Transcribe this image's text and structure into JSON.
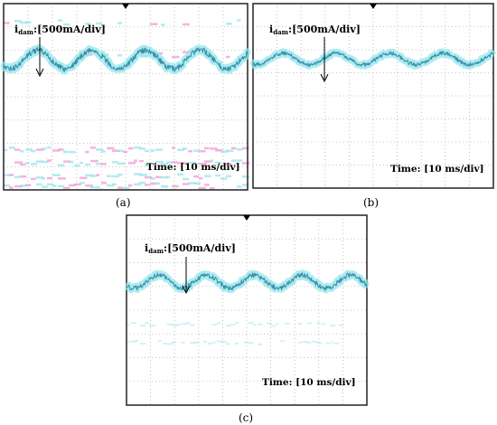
{
  "figure": {
    "panels": [
      {
        "id": "a",
        "caption": "(a)",
        "current_prefix": "i",
        "current_subscript": "dam",
        "current_label": ":[500mA/div]",
        "time_label": "Time: [10 ms/div]"
      },
      {
        "id": "b",
        "caption": "(b)",
        "current_prefix": "i",
        "current_subscript": "dam",
        "current_label": ":[500mA/div]",
        "time_label": "Time: [10 ms/div]"
      },
      {
        "id": "c",
        "caption": "(c)",
        "current_prefix": "i",
        "current_subscript": "dam",
        "current_label": ":[500mA/div]",
        "time_label": "Time: [10 ms/div]"
      }
    ]
  },
  "colors": {
    "grid_dot": "#b5b5b5",
    "trace": "#3f8fa8",
    "trace_glow": "#8fe6ee",
    "frame": "#222222",
    "ghost_pink": "#f39ad4",
    "ghost_cyan": "#9ae3ec"
  },
  "chart_data": [
    {
      "type": "line",
      "panel": "a",
      "x_divisions": 10,
      "y_divisions": 8,
      "x_unit_per_div": "10 ms",
      "y_unit_per_div": "500 mA",
      "waveform": {
        "cycles": 4.5,
        "amplitude_div": 0.4,
        "center_div": 2.4,
        "phase": 0.8,
        "noise_div": 0.12
      }
    },
    {
      "type": "line",
      "panel": "b",
      "x_divisions": 10,
      "y_divisions": 8,
      "x_unit_per_div": "10 ms",
      "y_unit_per_div": "500 mA",
      "waveform": {
        "cycles": 4.5,
        "amplitude_div": 0.25,
        "center_div": 2.4,
        "phase": 1.2,
        "noise_div": 0.08
      }
    },
    {
      "type": "line",
      "panel": "c",
      "x_divisions": 10,
      "y_divisions": 8,
      "x_unit_per_div": "10 ms",
      "y_unit_per_div": "500 mA",
      "waveform": {
        "cycles": 5.0,
        "amplitude_div": 0.28,
        "center_div": 2.8,
        "phase": 0.6,
        "noise_div": 0.1
      }
    }
  ]
}
